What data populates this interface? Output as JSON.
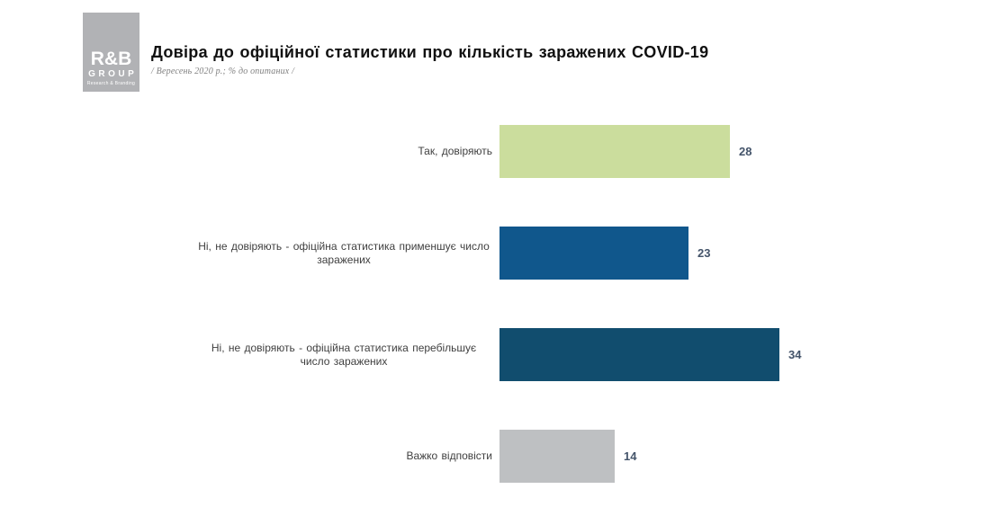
{
  "logo": {
    "brand": "R&B",
    "group": "GROUP",
    "tagline": "Research & Branding"
  },
  "header": {
    "title": "Довіра до офіційної статистики про кількість заражених COVID-19",
    "subtitle": "/ Вересень 2020 р.; % до опитаних /"
  },
  "chart_data": {
    "type": "bar",
    "orientation": "horizontal",
    "title": "Довіра до офіційної статистики про кількість заражених COVID-19",
    "subtitle": "/ Вересень 2020 р.; % до опитаних /",
    "categories": [
      "Так, довіряють",
      "Ні, не довіряють - офіційна статистика применшує число заражених",
      "Ні, не довіряють - офіційна статистика перебільшує число заражених",
      "Важко відповісти"
    ],
    "values": [
      28,
      23,
      34,
      14
    ],
    "bar_colors": [
      "#cbdd9d",
      "#10578c",
      "#114d6e",
      "#bec0c2"
    ],
    "value_label_color": "#44546a",
    "category_label_color": "#3f3f3f",
    "xlim": [
      0,
      38
    ],
    "grid": false,
    "legend": false,
    "data_labels": true
  }
}
